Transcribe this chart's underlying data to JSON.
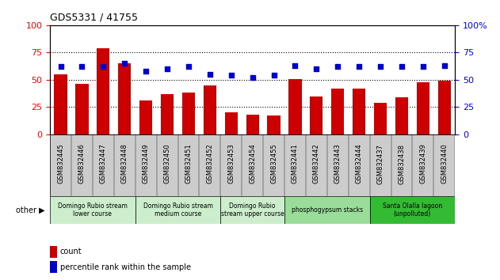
{
  "title": "GDS5331 / 41755",
  "samples": [
    "GSM832445",
    "GSM832446",
    "GSM832447",
    "GSM832448",
    "GSM832449",
    "GSM832450",
    "GSM832451",
    "GSM832452",
    "GSM832453",
    "GSM832454",
    "GSM832455",
    "GSM832441",
    "GSM832442",
    "GSM832443",
    "GSM832444",
    "GSM832437",
    "GSM832438",
    "GSM832439",
    "GSM832440"
  ],
  "counts": [
    55,
    46,
    79,
    65,
    31,
    37,
    38,
    45,
    20,
    18,
    17,
    51,
    35,
    42,
    42,
    29,
    34,
    48,
    49
  ],
  "percentiles": [
    62,
    62,
    62,
    65,
    58,
    60,
    62,
    55,
    54,
    52,
    54,
    63,
    60,
    62,
    62,
    62,
    62,
    62,
    63
  ],
  "groups": [
    {
      "label": "Domingo Rubio stream\nlower course",
      "start": 0,
      "end": 4,
      "color": "#cceecc"
    },
    {
      "label": "Domingo Rubio stream\nmedium course",
      "start": 4,
      "end": 8,
      "color": "#cceecc"
    },
    {
      "label": "Domingo Rubio\nstream upper course",
      "start": 8,
      "end": 11,
      "color": "#cceecc"
    },
    {
      "label": "phosphogypsum stacks",
      "start": 11,
      "end": 15,
      "color": "#99dd99"
    },
    {
      "label": "Santa Olalla lagoon\n(unpolluted)",
      "start": 15,
      "end": 19,
      "color": "#33bb33"
    }
  ],
  "bar_color": "#cc0000",
  "dot_color": "#0000cc",
  "ylim": [
    0,
    100
  ],
  "yticks": [
    0,
    25,
    50,
    75,
    100
  ],
  "xtick_bg": "#cccccc",
  "other_label": "other"
}
